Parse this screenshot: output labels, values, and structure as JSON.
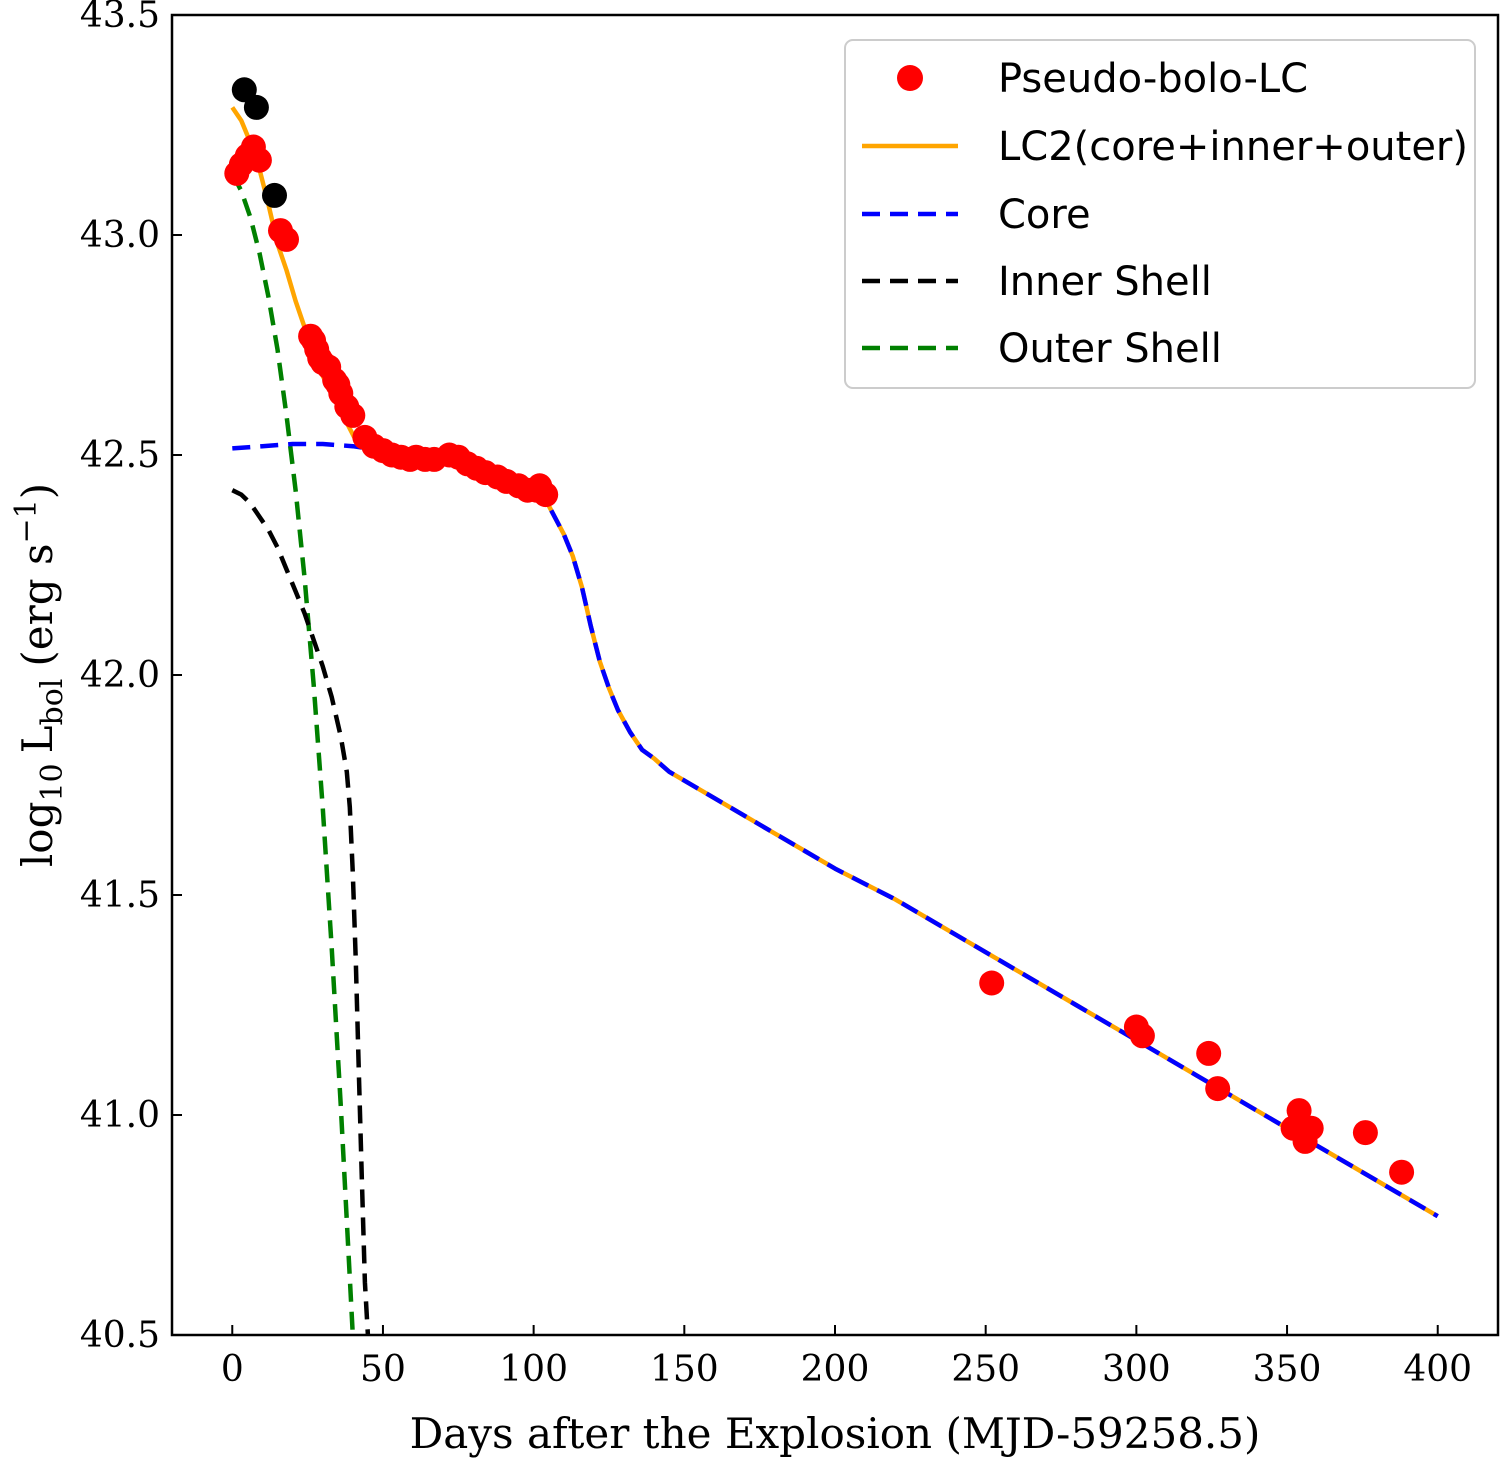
{
  "chart_data": {
    "type": "line",
    "xlabel": "Days after the Explosion (MJD-59258.5)",
    "ylabel_main": "log",
    "ylabel_sub": "10",
    "ylabel_L": "L",
    "ylabel_Lsub": "bol",
    "ylabel_unit": "(erg s",
    "ylabel_unit_sup": "−1",
    "ylabel_unit_close": ")",
    "xlim": [
      -20,
      420
    ],
    "ylim": [
      40.5,
      43.5
    ],
    "xticks": [
      0,
      50,
      100,
      150,
      200,
      250,
      300,
      350,
      400
    ],
    "xtick_labels": [
      "0",
      "50",
      "100",
      "150",
      "200",
      "250",
      "300",
      "350",
      "400"
    ],
    "yticks": [
      40.5,
      41.0,
      41.5,
      42.0,
      42.5,
      43.0,
      43.5
    ],
    "ytick_labels": [
      "40.5",
      "41.0",
      "41.5",
      "42.0",
      "42.5",
      "43.0",
      "43.5"
    ],
    "legend_position": "top-right",
    "legend": [
      {
        "label": "Pseudo-bolo-LC",
        "style": "marker",
        "color": "#ff0000"
      },
      {
        "label": "LC2(core+inner+outer)",
        "style": "solid",
        "color": "#ffa500"
      },
      {
        "label": "Core",
        "style": "dashed",
        "color": "#0000ff"
      },
      {
        "label": "Inner Shell",
        "style": "dashed",
        "color": "#000000"
      },
      {
        "label": "Outer Shell",
        "style": "dashed",
        "color": "#008000"
      }
    ],
    "series": [
      {
        "name": "LC2(core+inner+outer)",
        "kind": "line",
        "color": "#ffa500",
        "dash": "none",
        "x": [
          0,
          3,
          6,
          9,
          12,
          15,
          18,
          21,
          24,
          27,
          30,
          33,
          36,
          39,
          42,
          45,
          50,
          55,
          60,
          65,
          70,
          75,
          80,
          85,
          90,
          95,
          100,
          105,
          110,
          113,
          116,
          119,
          122,
          125,
          128,
          132,
          136,
          140,
          145,
          150,
          160,
          170,
          180,
          190,
          200,
          220,
          240,
          260,
          280,
          300,
          320,
          340,
          360,
          380,
          400
        ],
        "y": [
          43.29,
          43.26,
          43.21,
          43.15,
          43.07,
          42.98,
          42.92,
          42.85,
          42.79,
          42.73,
          42.68,
          42.64,
          42.6,
          42.56,
          42.52,
          42.515,
          42.51,
          42.505,
          42.5,
          42.5,
          42.495,
          42.49,
          42.48,
          42.47,
          42.455,
          42.44,
          42.42,
          42.385,
          42.32,
          42.27,
          42.2,
          42.11,
          42.03,
          41.97,
          41.92,
          41.87,
          41.83,
          41.81,
          41.78,
          41.76,
          41.72,
          41.68,
          41.64,
          41.6,
          41.56,
          41.49,
          41.41,
          41.33,
          41.25,
          41.17,
          41.09,
          41.01,
          40.93,
          40.85,
          40.77
        ]
      },
      {
        "name": "Core",
        "kind": "line",
        "color": "#0000ff",
        "dash": "18 10",
        "x": [
          0,
          10,
          20,
          30,
          40,
          50,
          60,
          70,
          80,
          90,
          100,
          105,
          110,
          113,
          116,
          119,
          122,
          125,
          128,
          132,
          136,
          140,
          145,
          150,
          160,
          170,
          180,
          190,
          200,
          220,
          240,
          260,
          280,
          300,
          320,
          340,
          360,
          380,
          400
        ],
        "y": [
          42.515,
          42.52,
          42.525,
          42.525,
          42.52,
          42.51,
          42.505,
          42.5,
          42.48,
          42.455,
          42.42,
          42.385,
          42.32,
          42.27,
          42.2,
          42.11,
          42.03,
          41.97,
          41.92,
          41.87,
          41.83,
          41.81,
          41.78,
          41.76,
          41.72,
          41.68,
          41.64,
          41.6,
          41.56,
          41.49,
          41.41,
          41.33,
          41.25,
          41.17,
          41.09,
          41.01,
          40.93,
          40.85,
          40.77
        ]
      },
      {
        "name": "Inner Shell",
        "kind": "line",
        "color": "#000000",
        "dash": "18 10",
        "x": [
          0,
          3,
          6,
          9,
          12,
          15,
          18,
          21,
          24,
          27,
          30,
          33,
          36,
          38,
          39,
          40,
          41,
          42,
          43,
          44,
          45
        ],
        "y": [
          42.42,
          42.41,
          42.39,
          42.36,
          42.33,
          42.29,
          42.24,
          42.19,
          42.14,
          42.08,
          42.02,
          41.95,
          41.86,
          41.78,
          41.7,
          41.55,
          41.35,
          41.1,
          40.85,
          40.62,
          40.5
        ]
      },
      {
        "name": "Outer Shell",
        "kind": "line",
        "color": "#008000",
        "dash": "18 10",
        "x": [
          0,
          3,
          6,
          9,
          12,
          15,
          18,
          21,
          24,
          27,
          30,
          33,
          36,
          38,
          40
        ],
        "y": [
          43.14,
          43.1,
          43.04,
          42.96,
          42.86,
          42.74,
          42.59,
          42.42,
          42.22,
          41.98,
          41.7,
          41.38,
          41.02,
          40.76,
          40.5
        ]
      },
      {
        "name": "Pseudo-bolo-LC",
        "kind": "scatter",
        "color": "#ff0000",
        "x": [
          1.5,
          3,
          5,
          7,
          9,
          16,
          18,
          26,
          27,
          28,
          29,
          30,
          32,
          34,
          35,
          36,
          38,
          40,
          44,
          47,
          50,
          53,
          56,
          59,
          61,
          64,
          67,
          72,
          75,
          78,
          81,
          84,
          88,
          91,
          95,
          98,
          101,
          102,
          104,
          252,
          300,
          302,
          324,
          327,
          352,
          354,
          356,
          358,
          376,
          388
        ],
        "y": [
          43.14,
          43.16,
          43.18,
          43.2,
          43.17,
          43.01,
          42.99,
          42.77,
          42.76,
          42.74,
          42.72,
          42.71,
          42.7,
          42.67,
          42.66,
          42.64,
          42.61,
          42.59,
          42.54,
          42.52,
          42.51,
          42.5,
          42.495,
          42.49,
          42.495,
          42.49,
          42.49,
          42.5,
          42.495,
          42.48,
          42.47,
          42.46,
          42.45,
          42.44,
          42.43,
          42.42,
          42.42,
          42.43,
          42.41,
          41.3,
          41.2,
          41.18,
          41.14,
          41.06,
          40.97,
          41.01,
          40.94,
          40.97,
          40.96,
          40.87
        ]
      },
      {
        "name": "",
        "kind": "scatter",
        "color": "#000000",
        "x": [
          4,
          8,
          14
        ],
        "y": [
          43.33,
          43.29,
          43.09
        ]
      }
    ]
  }
}
